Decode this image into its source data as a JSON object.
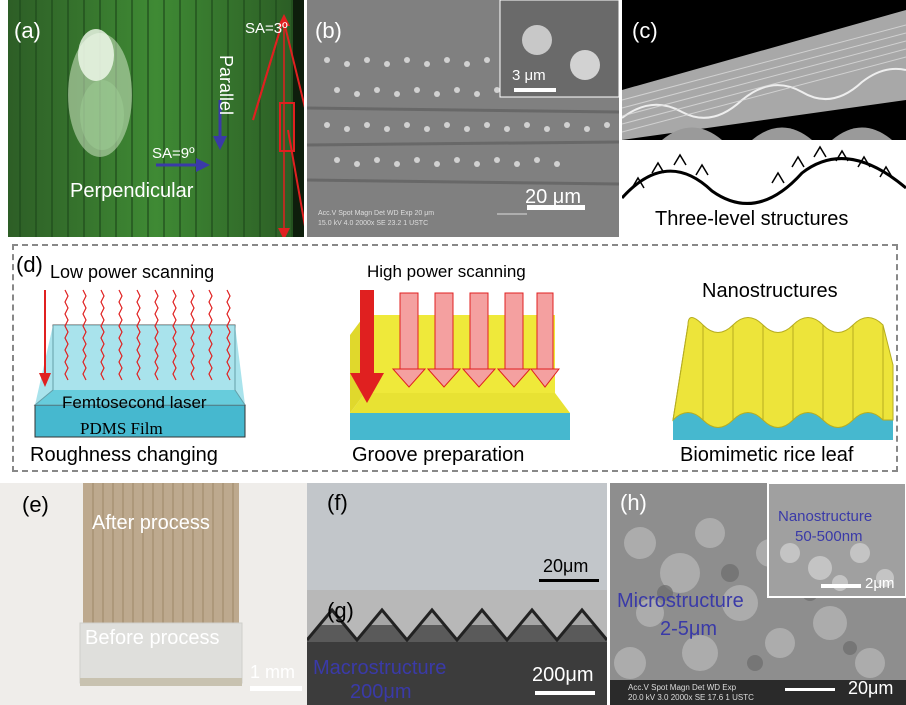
{
  "panel_a": {
    "label": "(a)",
    "sa_parallel": "SA=3º",
    "parallel": "Parallel",
    "sa_perpendicular": "SA=9º",
    "perpendicular": "Perpendicular"
  },
  "panel_b": {
    "label": "(b)",
    "inset_scale": "3 μm",
    "scale": "20 μm",
    "sem_info": "Acc.V  Spot Magn   Det  WD  Exp        20 μm",
    "sem_info2": "15.0 kV 4.0  2000x   SE  23.2  1          USTC"
  },
  "panel_c": {
    "label": "(c)",
    "caption": "Three-level structures"
  },
  "panel_d": {
    "label": "(d)",
    "step1_title": "Low power scanning",
    "laser_label": "Femtosecond laser",
    "film_label": "PDMS  Film",
    "step1_caption": "Roughness changing",
    "step2_title": "High power scanning",
    "step2_caption": "Groove preparation",
    "step3_title": "Nanostructures",
    "step3_caption": "Biomimetic rice leaf"
  },
  "panel_e": {
    "label": "(e)",
    "after": "After process",
    "before": "Before process",
    "scale": "1 mm"
  },
  "panel_f": {
    "label": "(f)",
    "scale": "20μm"
  },
  "panel_g": {
    "label": "(g)",
    "macro1": "Macrostructure",
    "macro2": "200μm",
    "scale": "200μm"
  },
  "panel_h": {
    "label": "(h)",
    "nano1": "Nanostructure",
    "nano2": "50-500nm",
    "inset_scale": "2μm",
    "micro1": "Microstructure",
    "micro2": "2-5μm",
    "scale": "20μm",
    "sem_info": "Acc.V  Spot Magn   Det  WD  Exp",
    "sem_info2": "20.0 kV 3.0  2000x   SE  17.6  1          USTC"
  }
}
